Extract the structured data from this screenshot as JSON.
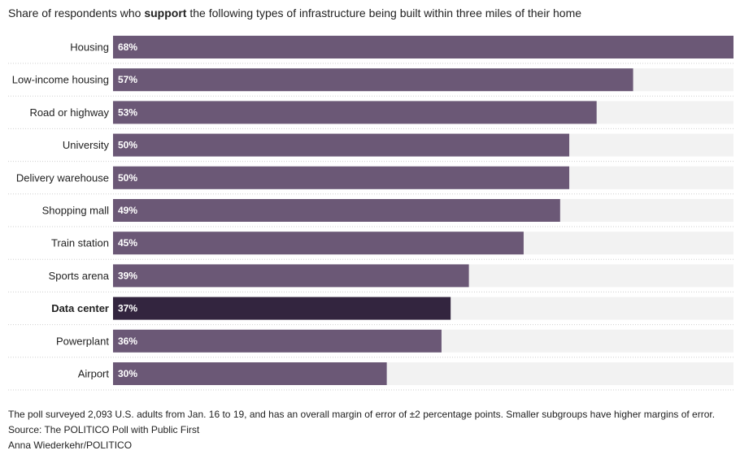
{
  "title": {
    "before": "Share of respondents who ",
    "bold": "support",
    "after": " the following types of infrastructure being built within three miles of their home"
  },
  "colors": {
    "bar": "#6b5876",
    "highlight_bar": "#33253f",
    "track": "#f2f2f2",
    "bar_label": "#ffffff",
    "divider": "#cfcfcf"
  },
  "chart_data": {
    "type": "bar",
    "orientation": "horizontal",
    "categories": [
      "Housing",
      "Low-income housing",
      "Road or highway",
      "University",
      "Delivery warehouse",
      "Shopping mall",
      "Train station",
      "Sports arena",
      "Data center",
      "Powerplant",
      "Airport"
    ],
    "values": [
      68,
      57,
      53,
      50,
      50,
      49,
      45,
      39,
      37,
      36,
      30
    ],
    "value_labels": [
      "68%",
      "57%",
      "53%",
      "50%",
      "50%",
      "49%",
      "45%",
      "39%",
      "37%",
      "36%",
      "30%"
    ],
    "highlight": "Data center",
    "xlim": [
      0,
      68
    ],
    "grid": false,
    "legend": "none"
  },
  "notes": {
    "methodology": "The poll surveyed 2,093 U.S. adults from Jan. 16 to 19, and has an overall margin of error of ±2 percentage points. Smaller subgroups have higher margins of error.",
    "source": "Source: The POLITICO Poll with Public First",
    "credit": "Anna Wiederkehr/POLITICO"
  }
}
